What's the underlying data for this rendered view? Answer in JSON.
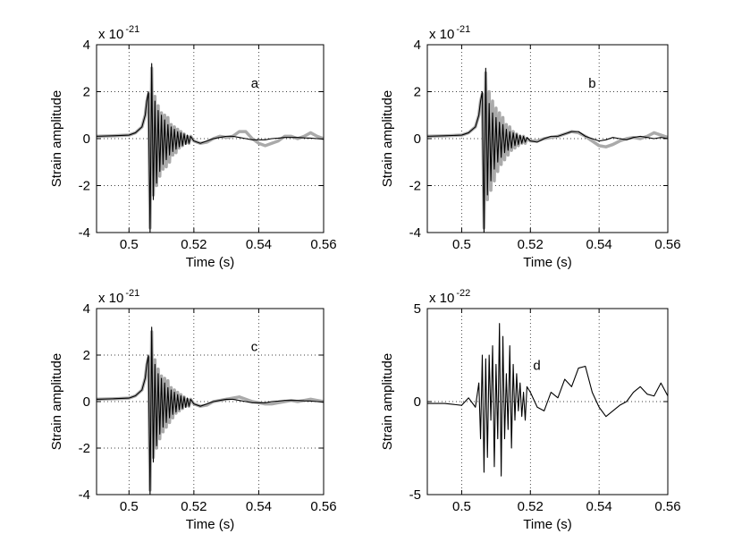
{
  "chart_data": [
    {
      "type": "line",
      "annotation": "a",
      "xlabel": "Time (s)",
      "ylabel": "Strain amplitude",
      "multiplier": {
        "base": "x 10",
        "exponent": "-21"
      },
      "xlim": [
        0.49,
        0.56
      ],
      "xticks": [
        0.5,
        0.52,
        0.54,
        0.56
      ],
      "ylim": [
        -4,
        4
      ],
      "yticks": [
        -4,
        -2,
        0,
        2,
        4
      ],
      "grid": true,
      "x": [
        0.49,
        0.495,
        0.5,
        0.502,
        0.504,
        0.505,
        0.5055,
        0.506,
        0.5065,
        0.507,
        0.5075,
        0.508,
        0.5085,
        0.509,
        0.5095,
        0.51,
        0.5105,
        0.511,
        0.5115,
        0.512,
        0.5125,
        0.513,
        0.5135,
        0.514,
        0.5145,
        0.515,
        0.5155,
        0.516,
        0.5165,
        0.517,
        0.5175,
        0.518,
        0.5185,
        0.519,
        0.52,
        0.522,
        0.524,
        0.526,
        0.528,
        0.53,
        0.532,
        0.534,
        0.536,
        0.538,
        0.54,
        0.542,
        0.544,
        0.546,
        0.548,
        0.55,
        0.552,
        0.554,
        0.556,
        0.558,
        0.56
      ],
      "series": [
        {
          "color": "#aaaaaa",
          "values": [
            0.1,
            0.12,
            0.15,
            0.25,
            0.5,
            1.0,
            1.6,
            1.9,
            -3.8,
            3.0,
            -2.4,
            1.8,
            -2.0,
            1.4,
            -1.6,
            1.1,
            -1.3,
            1.0,
            -1.2,
            0.9,
            -1.0,
            0.6,
            -0.7,
            0.5,
            -0.6,
            0.4,
            -0.4,
            0.3,
            -0.3,
            0.2,
            -0.2,
            0.1,
            -0.2,
            0.1,
            -0.1,
            -0.2,
            -0.15,
            0.0,
            0.1,
            0.05,
            0.1,
            0.3,
            0.3,
            0.0,
            -0.2,
            -0.3,
            -0.2,
            -0.1,
            0.1,
            0.1,
            0.0,
            0.1,
            0.25,
            0.1,
            0.0
          ]
        },
        {
          "color": "#000000",
          "values": [
            0.1,
            0.12,
            0.15,
            0.25,
            0.5,
            1.0,
            1.6,
            2.0,
            -4,
            3.2,
            -2.6,
            1.6,
            -1.9,
            1.2,
            -1.4,
            1.0,
            -1.1,
            0.8,
            -0.9,
            0.6,
            -0.7,
            0.5,
            -0.55,
            0.4,
            -0.45,
            0.3,
            -0.35,
            0.25,
            -0.3,
            0.2,
            -0.25,
            0.15,
            -0.2,
            0.1,
            -0.1,
            -0.2,
            -0.1,
            0.0,
            0.05,
            0.1,
            0.1,
            0.05,
            0.0,
            -0.05,
            -0.05,
            -0.05,
            0.0,
            0.02,
            0.05,
            0.05,
            0.05,
            0.03,
            0.02,
            0.0,
            -0.02
          ]
        }
      ]
    },
    {
      "type": "line",
      "annotation": "b",
      "xlabel": "Time (s)",
      "ylabel": "Strain amplitude",
      "multiplier": {
        "base": "x 10",
        "exponent": "-21"
      },
      "xlim": [
        0.49,
        0.56
      ],
      "xticks": [
        0.5,
        0.52,
        0.54,
        0.56
      ],
      "ylim": [
        -4,
        4
      ],
      "yticks": [
        -4,
        -2,
        0,
        2,
        4
      ],
      "grid": true,
      "x": [
        0.49,
        0.495,
        0.5,
        0.502,
        0.504,
        0.505,
        0.5055,
        0.506,
        0.5065,
        0.507,
        0.5075,
        0.508,
        0.5085,
        0.509,
        0.5095,
        0.51,
        0.5105,
        0.511,
        0.5115,
        0.512,
        0.5125,
        0.513,
        0.5135,
        0.514,
        0.5145,
        0.515,
        0.5155,
        0.516,
        0.5165,
        0.517,
        0.5175,
        0.518,
        0.5185,
        0.519,
        0.52,
        0.522,
        0.524,
        0.526,
        0.528,
        0.53,
        0.532,
        0.534,
        0.536,
        0.538,
        0.54,
        0.542,
        0.544,
        0.546,
        0.548,
        0.55,
        0.552,
        0.554,
        0.556,
        0.558,
        0.56
      ],
      "series": [
        {
          "color": "#aaaaaa",
          "values": [
            0.1,
            0.12,
            0.15,
            0.25,
            0.5,
            1.0,
            1.6,
            1.9,
            -3.8,
            2.8,
            -2.6,
            2.0,
            -2.2,
            1.6,
            -1.8,
            1.3,
            -1.4,
            1.1,
            -1.1,
            0.9,
            -0.9,
            0.6,
            -0.7,
            0.5,
            -0.5,
            0.3,
            -0.4,
            0.2,
            -0.3,
            0.1,
            -0.2,
            0.1,
            -0.2,
            0.0,
            -0.1,
            -0.1,
            0.0,
            0.05,
            0.1,
            0.2,
            0.3,
            0.25,
            0.1,
            -0.1,
            -0.3,
            -0.35,
            -0.25,
            -0.1,
            0.0,
            0.05,
            0.0,
            0.1,
            0.25,
            0.15,
            0.05
          ]
        },
        {
          "color": "#000000",
          "values": [
            0.1,
            0.12,
            0.15,
            0.25,
            0.5,
            1.0,
            1.6,
            2.0,
            -4,
            3.0,
            -2.4,
            1.5,
            -1.8,
            1.1,
            -1.3,
            0.9,
            -1.0,
            0.7,
            -0.8,
            0.6,
            -0.6,
            0.4,
            -0.5,
            0.3,
            -0.4,
            0.25,
            -0.3,
            0.2,
            -0.25,
            0.15,
            -0.2,
            0.1,
            -0.15,
            0.05,
            -0.1,
            -0.15,
            0.0,
            0.1,
            0.1,
            0.2,
            0.3,
            0.3,
            0.1,
            0.0,
            -0.1,
            -0.05,
            0.05,
            0.0,
            -0.05,
            0.05,
            0.1,
            0.05,
            0.0,
            0.05,
            0.0
          ]
        }
      ]
    },
    {
      "type": "line",
      "annotation": "c",
      "xlabel": "Time (s)",
      "ylabel": "Strain amplitude",
      "multiplier": {
        "base": "x 10",
        "exponent": "-21"
      },
      "xlim": [
        0.49,
        0.56
      ],
      "xticks": [
        0.5,
        0.52,
        0.54,
        0.56
      ],
      "ylim": [
        -4,
        4
      ],
      "yticks": [
        -4,
        -2,
        0,
        2,
        4
      ],
      "grid": true,
      "x": [
        0.49,
        0.495,
        0.5,
        0.502,
        0.504,
        0.505,
        0.5055,
        0.506,
        0.5065,
        0.507,
        0.5075,
        0.508,
        0.5085,
        0.509,
        0.5095,
        0.51,
        0.5105,
        0.511,
        0.5115,
        0.512,
        0.5125,
        0.513,
        0.5135,
        0.514,
        0.5145,
        0.515,
        0.5155,
        0.516,
        0.5165,
        0.517,
        0.5175,
        0.518,
        0.5185,
        0.519,
        0.52,
        0.522,
        0.524,
        0.526,
        0.528,
        0.53,
        0.532,
        0.534,
        0.536,
        0.538,
        0.54,
        0.542,
        0.544,
        0.546,
        0.548,
        0.55,
        0.552,
        0.554,
        0.556,
        0.558,
        0.56
      ],
      "series": [
        {
          "color": "#aaaaaa",
          "values": [
            0.1,
            0.12,
            0.15,
            0.25,
            0.5,
            1.0,
            1.6,
            1.9,
            -3.8,
            3.0,
            -2.4,
            1.8,
            -2.0,
            1.4,
            -1.6,
            1.1,
            -1.3,
            1.0,
            -1.1,
            0.9,
            -0.9,
            0.6,
            -0.7,
            0.5,
            -0.5,
            0.4,
            -0.4,
            0.3,
            -0.3,
            0.2,
            -0.2,
            0.1,
            -0.2,
            0.1,
            -0.1,
            -0.2,
            -0.15,
            0.0,
            0.05,
            0.1,
            0.15,
            0.2,
            0.1,
            0.0,
            -0.05,
            -0.1,
            -0.1,
            -0.05,
            0.0,
            0.05,
            0.0,
            0.05,
            0.1,
            0.05,
            0.0
          ]
        },
        {
          "color": "#000000",
          "values": [
            0.1,
            0.12,
            0.15,
            0.25,
            0.5,
            1.0,
            1.6,
            2.0,
            -4,
            3.2,
            -2.6,
            1.6,
            -1.9,
            1.2,
            -1.4,
            1.0,
            -1.1,
            0.8,
            -0.9,
            0.6,
            -0.7,
            0.5,
            -0.55,
            0.4,
            -0.45,
            0.3,
            -0.35,
            0.25,
            -0.3,
            0.2,
            -0.25,
            0.15,
            -0.2,
            0.1,
            -0.1,
            -0.2,
            -0.1,
            0.0,
            0.05,
            0.1,
            0.1,
            0.05,
            0.0,
            -0.05,
            -0.05,
            -0.05,
            0.0,
            0.02,
            0.05,
            0.05,
            0.05,
            0.03,
            0.02,
            0.0,
            -0.02
          ]
        }
      ]
    },
    {
      "type": "line",
      "annotation": "d",
      "xlabel": "Time (s)",
      "ylabel": "Strain amplitude",
      "multiplier": {
        "base": "x 10",
        "exponent": "-22"
      },
      "xlim": [
        0.49,
        0.56
      ],
      "xticks": [
        0.5,
        0.52,
        0.54,
        0.56
      ],
      "ylim": [
        -5,
        5
      ],
      "yticks": [
        -5,
        0,
        5
      ],
      "grid": true,
      "x": [
        0.49,
        0.495,
        0.5,
        0.502,
        0.504,
        0.505,
        0.5055,
        0.506,
        0.5065,
        0.507,
        0.5075,
        0.508,
        0.5085,
        0.509,
        0.5095,
        0.51,
        0.5105,
        0.511,
        0.5115,
        0.512,
        0.5125,
        0.513,
        0.5135,
        0.514,
        0.5145,
        0.515,
        0.5155,
        0.516,
        0.5165,
        0.517,
        0.5175,
        0.518,
        0.5185,
        0.519,
        0.52,
        0.522,
        0.524,
        0.526,
        0.528,
        0.53,
        0.532,
        0.534,
        0.536,
        0.538,
        0.54,
        0.542,
        0.544,
        0.546,
        0.548,
        0.55,
        0.552,
        0.554,
        0.556,
        0.558,
        0.56
      ],
      "series": [
        {
          "color": "#000000",
          "values": [
            -0.1,
            -0.1,
            -0.2,
            0.2,
            -0.3,
            1.0,
            -2.0,
            2.5,
            -3.8,
            2.3,
            -3.0,
            2.5,
            -1.0,
            3.0,
            -3.5,
            2.0,
            -2.0,
            4.2,
            -4.0,
            3.5,
            -2.0,
            1.5,
            -1.5,
            3.0,
            -2.5,
            2.0,
            -1.0,
            1.5,
            -0.5,
            1.0,
            -0.8,
            0.5,
            -1.0,
            0.8,
            0.5,
            -0.3,
            -0.5,
            0.5,
            0.2,
            1.2,
            0.8,
            1.8,
            1.9,
            0.5,
            -0.3,
            -0.8,
            -0.5,
            -0.2,
            0.0,
            0.5,
            0.8,
            0.4,
            0.3,
            1.0,
            0.3
          ]
        }
      ]
    }
  ]
}
